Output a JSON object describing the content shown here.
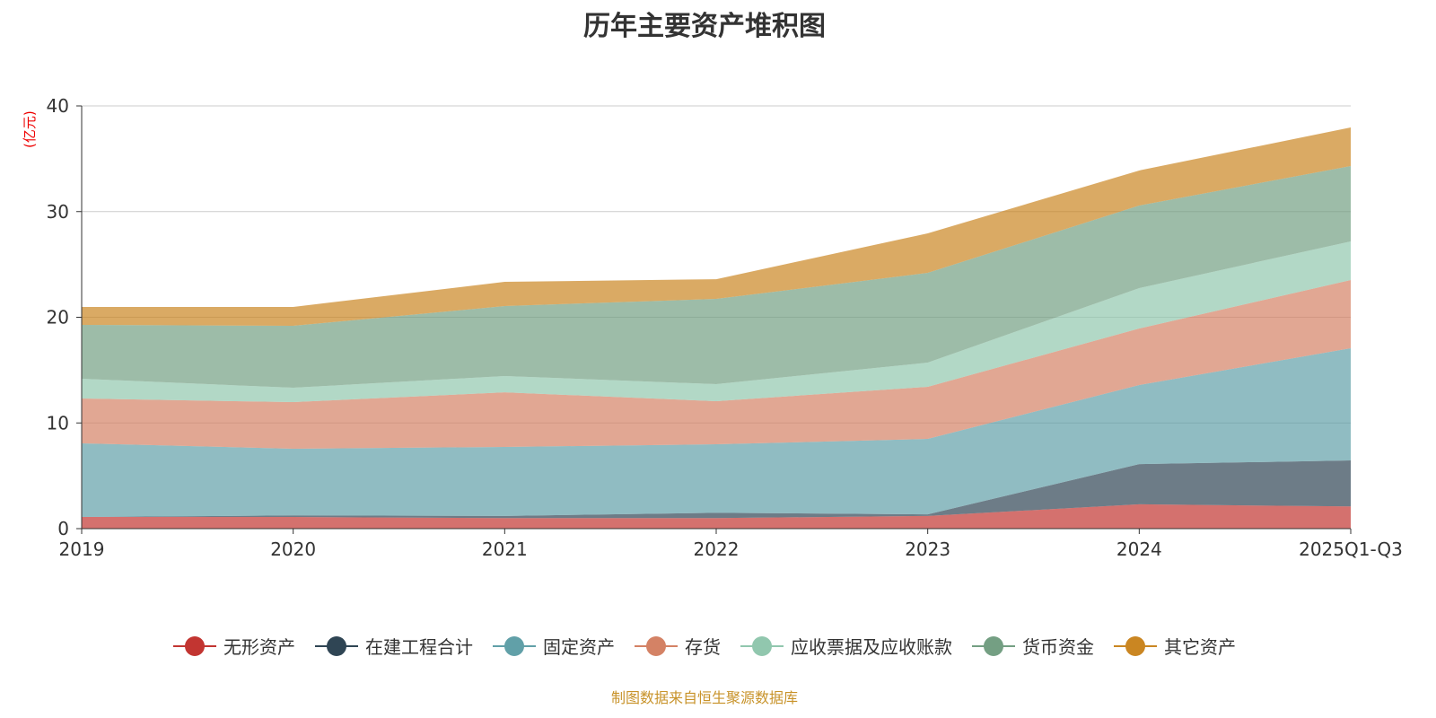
{
  "chart_data": {
    "type": "area",
    "stacked": true,
    "title": "历年主要资产堆积图",
    "ylabel": "(亿元)",
    "xlabel": "",
    "ylim": [
      0,
      40
    ],
    "yticks": [
      0,
      10,
      20,
      30,
      40
    ],
    "grid": true,
    "legend_position": "bottom",
    "categories": [
      "2019",
      "2020",
      "2021",
      "2022",
      "2023",
      "2024",
      "2025Q1-Q3"
    ],
    "series": [
      {
        "name": "无形资产",
        "color": "#c23531",
        "values": [
          1.1,
          1.1,
          1.0,
          1.0,
          1.2,
          2.3,
          2.1
        ]
      },
      {
        "name": "在建工程合计",
        "color": "#2f4554",
        "values": [
          0.0,
          0.15,
          0.2,
          0.5,
          0.15,
          3.8,
          4.35
        ]
      },
      {
        "name": "固定资产",
        "color": "#61a0a8",
        "values": [
          6.97,
          6.31,
          6.53,
          6.48,
          7.14,
          7.49,
          10.62
        ]
      },
      {
        "name": "存货",
        "color": "#d48265",
        "values": [
          4.24,
          4.41,
          5.17,
          4.08,
          4.93,
          5.35,
          6.45
        ]
      },
      {
        "name": "应收票据及应收账款",
        "color": "#91c7ae",
        "values": [
          1.87,
          1.36,
          1.54,
          1.61,
          2.29,
          3.82,
          3.66
        ]
      },
      {
        "name": "货币资金",
        "color": "#749f83",
        "values": [
          5.1,
          5.86,
          6.62,
          8.07,
          8.49,
          7.81,
          7.13
        ]
      },
      {
        "name": "其它资产",
        "color": "#ca8622",
        "values": [
          1.7,
          1.79,
          2.29,
          1.86,
          3.74,
          3.32,
          3.65
        ]
      }
    ],
    "source": "制图数据来自恒生聚源数据库"
  }
}
